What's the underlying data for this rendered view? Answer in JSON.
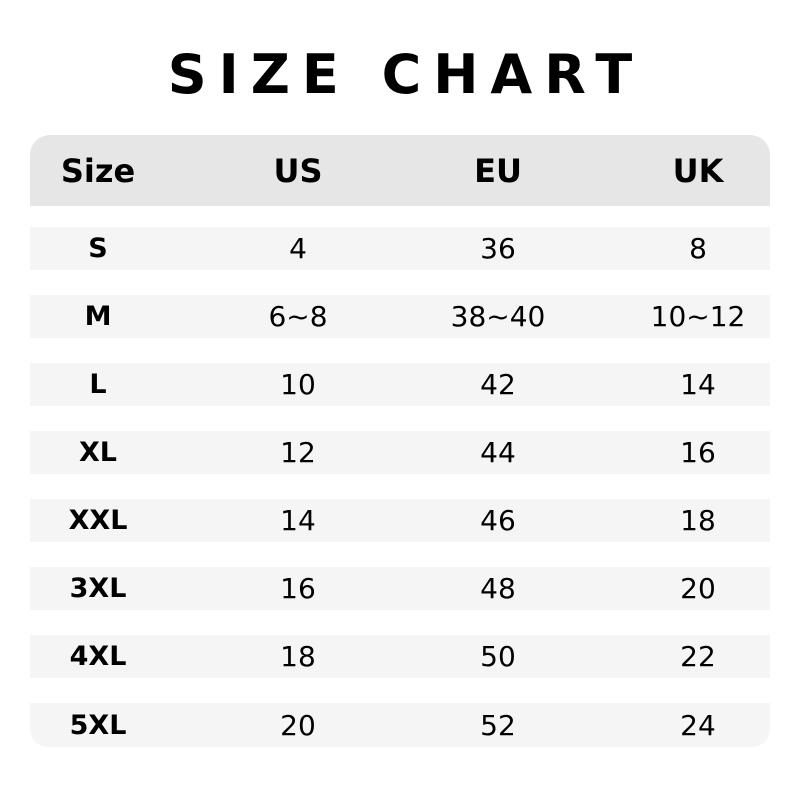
{
  "title": "SIZE CHART",
  "table": {
    "headers": [
      "Size",
      "US",
      "EU",
      "UK"
    ],
    "rows": [
      [
        "S",
        "4",
        "36",
        "8"
      ],
      [
        "M",
        "6~8",
        "38~40",
        "10~12"
      ],
      [
        "L",
        "10",
        "42",
        "14"
      ],
      [
        "XL",
        "12",
        "44",
        "16"
      ],
      [
        "XXL",
        "14",
        "46",
        "18"
      ],
      [
        "3XL",
        "16",
        "48",
        "20"
      ],
      [
        "4XL",
        "18",
        "50",
        "22"
      ],
      [
        "5XL",
        "20",
        "52",
        "24"
      ]
    ]
  },
  "colors": {
    "header_bg": "#e6e6e6",
    "row_bg": "#f5f5f5"
  }
}
